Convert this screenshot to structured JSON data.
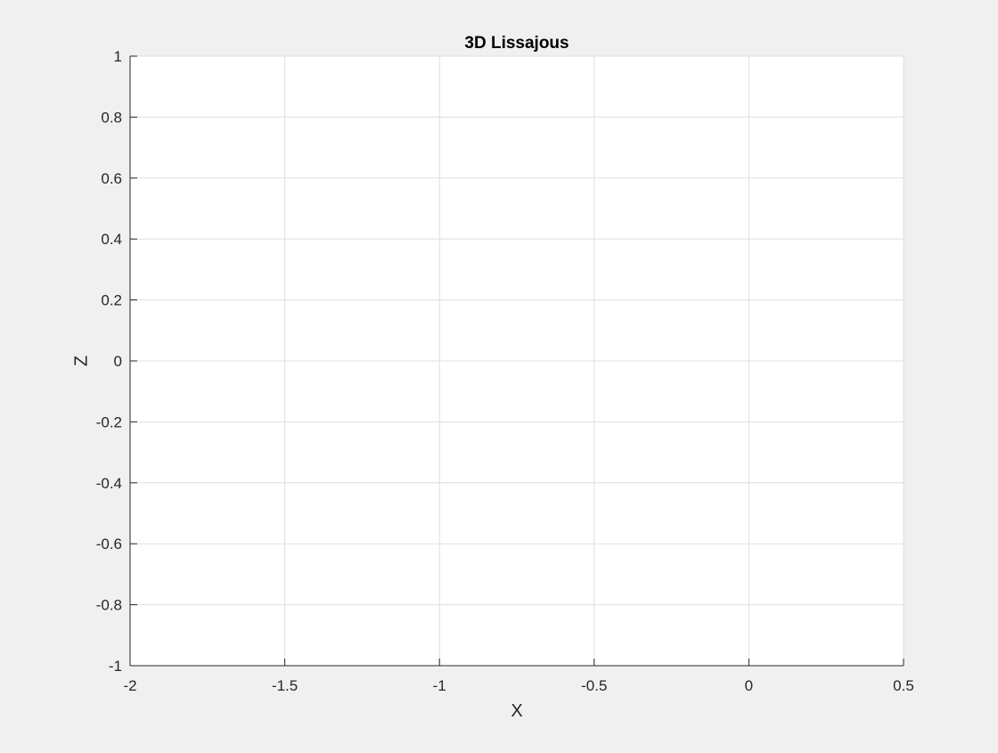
{
  "chart_data": {
    "type": "line",
    "title": "3D Lissajous",
    "xlabel": "X",
    "ylabel": "Z",
    "xlim": [
      -2,
      0.5
    ],
    "ylim": [
      -1,
      1
    ],
    "xticks": [
      -2,
      -1.5,
      -1,
      -0.5,
      0,
      0.5
    ],
    "yticks": [
      -1,
      -0.8,
      -0.6,
      -0.4,
      -0.2,
      0,
      0.2,
      0.4,
      0.6,
      0.8,
      1
    ],
    "xtick_labels": [
      "-2",
      "-1.5",
      "-1",
      "-0.5",
      "0",
      "0.5"
    ],
    "ytick_labels": [
      "-1",
      "-0.8",
      "-0.6",
      "-0.4",
      "-0.2",
      "0",
      "0.2",
      "0.4",
      "0.6",
      "0.8",
      "1"
    ],
    "grid": true,
    "series": []
  },
  "colors": {
    "figure_background": "#f0f0f0",
    "axes_background": "#ffffff",
    "grid": "#dfdfdf",
    "axis": "#262626"
  }
}
